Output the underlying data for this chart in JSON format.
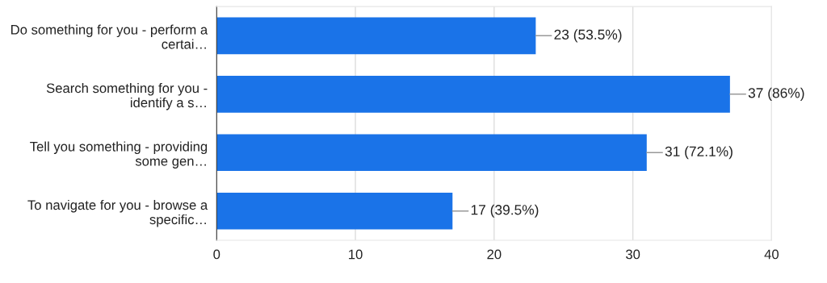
{
  "chart_data": {
    "type": "bar",
    "orientation": "horizontal",
    "categories": [
      "Do something for you - perform a\ncertai…",
      "Search something for you -\nidentify a s…",
      "Tell you something - providing\nsome gen…",
      "To navigate for you - browse a\nspecific…"
    ],
    "values": [
      23,
      37,
      31,
      17
    ],
    "value_labels": [
      "23 (53.5%)",
      "37 (86%)",
      "31 (72.1%)",
      "17 (39.5%)"
    ],
    "color": "#1a73e8",
    "xlim": [
      0,
      40
    ],
    "xticks": [
      0,
      10,
      20,
      30,
      40
    ],
    "grid": "x"
  }
}
